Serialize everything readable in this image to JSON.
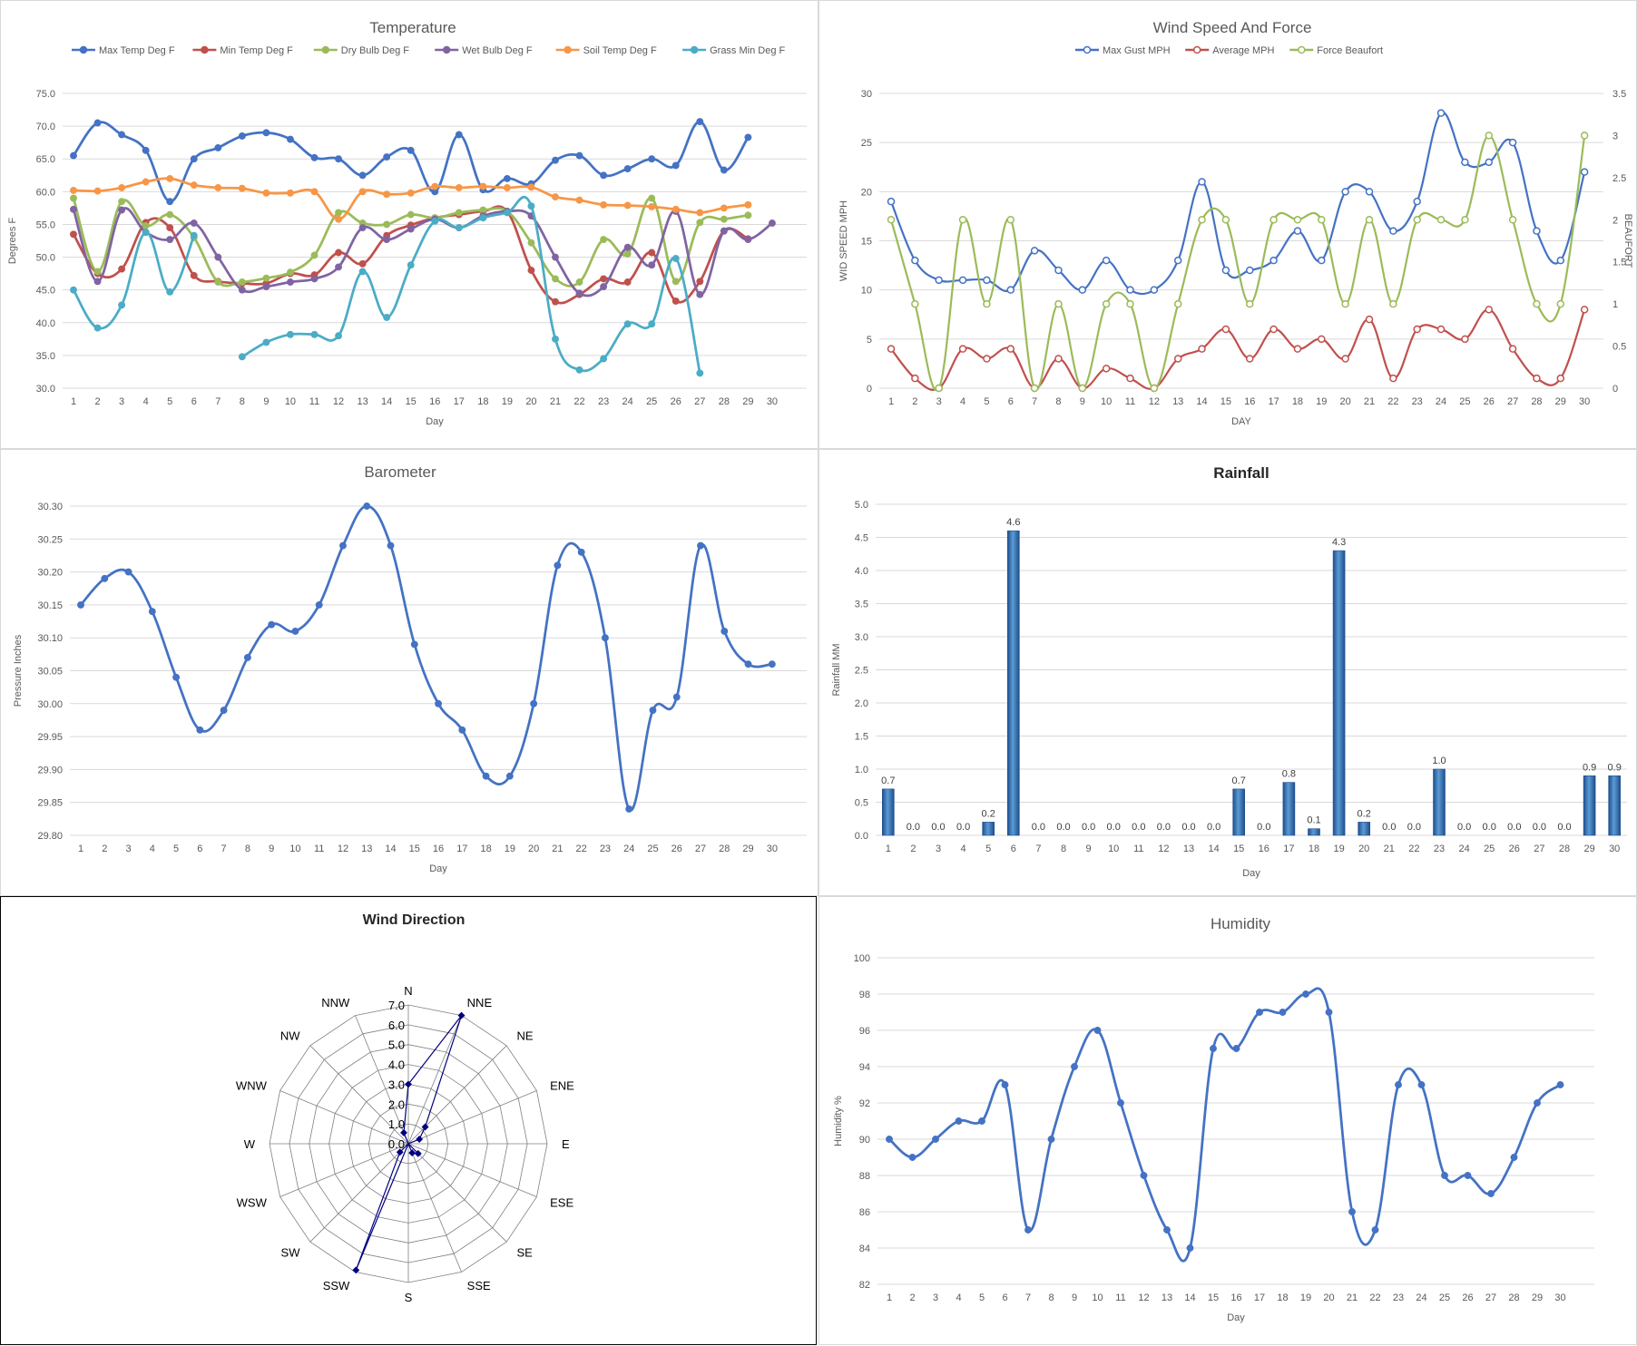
{
  "days": [
    "1",
    "2",
    "3",
    "4",
    "5",
    "6",
    "7",
    "8",
    "9",
    "10",
    "11",
    "12",
    "13",
    "14",
    "15",
    "16",
    "17",
    "18",
    "19",
    "20",
    "21",
    "22",
    "23",
    "24",
    "25",
    "26",
    "27",
    "28",
    "29",
    "30"
  ],
  "chart_data": [
    {
      "id": "temperature",
      "type": "line",
      "title": "Temperature",
      "xlabel": "Day",
      "ylabel": "Degrees F",
      "ylim": [
        30,
        75
      ],
      "yticks": [
        "30.0",
        "35.0",
        "40.0",
        "45.0",
        "50.0",
        "55.0",
        "60.0",
        "65.0",
        "70.0",
        "75.0"
      ],
      "grid": true,
      "legend": "top",
      "series": [
        {
          "name": "Max Temp Deg F",
          "color": "#4472c4",
          "values": [
            65.5,
            70.5,
            68.7,
            66.3,
            58.5,
            65.0,
            66.7,
            68.5,
            69.0,
            68.0,
            65.2,
            65.0,
            62.5,
            65.3,
            66.3,
            60.0,
            68.7,
            60.3,
            62.0,
            61.2,
            64.8,
            65.5,
            62.5,
            63.5,
            65.0,
            64.0,
            70.7,
            63.3,
            68.3,
            null
          ]
        },
        {
          "name": "Min Temp Deg F",
          "color": "#c0504d",
          "values": [
            53.5,
            47.5,
            48.2,
            55.3,
            54.5,
            47.2,
            46.3,
            46.0,
            46.0,
            47.5,
            47.3,
            50.7,
            49.0,
            53.3,
            54.9,
            56.0,
            56.5,
            57.0,
            57.0,
            48.0,
            43.2,
            44.3,
            46.7,
            46.2,
            50.7,
            43.3,
            46.3,
            54.0,
            52.8,
            null
          ]
        },
        {
          "name": "Dry Bulb Deg F",
          "color": "#9bbb59",
          "values": [
            59.0,
            47.8,
            58.5,
            54.8,
            56.5,
            53.0,
            46.2,
            46.2,
            46.8,
            47.7,
            50.3,
            56.8,
            55.2,
            55.0,
            56.5,
            56.0,
            56.8,
            57.2,
            57.0,
            52.2,
            46.7,
            46.2,
            52.7,
            50.5,
            59.0,
            46.3,
            55.3,
            55.8,
            56.4,
            null
          ]
        },
        {
          "name": "Wet Bulb Deg F",
          "color": "#8064a2",
          "values": [
            57.3,
            46.3,
            57.2,
            53.8,
            52.7,
            55.2,
            50.0,
            45.0,
            45.5,
            46.2,
            46.7,
            48.5,
            54.5,
            52.7,
            54.3,
            55.8,
            54.5,
            56.3,
            57.0,
            56.3,
            50.0,
            44.5,
            45.5,
            51.5,
            48.8,
            57.0,
            44.3,
            54.0,
            52.7,
            55.2
          ]
        },
        {
          "name": "Soil Temp Deg F",
          "color": "#f79646",
          "values": [
            60.2,
            60.1,
            60.6,
            61.5,
            62.0,
            61.0,
            60.6,
            60.5,
            59.8,
            59.8,
            60.0,
            55.8,
            60.0,
            59.6,
            59.8,
            60.8,
            60.6,
            60.8,
            60.6,
            60.7,
            59.2,
            58.7,
            58.0,
            57.9,
            57.7,
            57.3,
            56.8,
            57.5,
            58.0,
            null
          ]
        },
        {
          "name": "Grass Min Deg F",
          "color": "#4bacc6",
          "values": [
            45.0,
            39.2,
            42.7,
            53.8,
            44.7,
            53.3,
            null,
            34.8,
            37.0,
            38.2,
            38.2,
            38.0,
            47.8,
            40.8,
            48.8,
            55.5,
            54.5,
            56.0,
            56.8,
            57.8,
            37.5,
            32.8,
            34.5,
            39.8,
            39.8,
            49.8,
            32.3,
            null,
            null,
            null
          ]
        }
      ]
    },
    {
      "id": "wind",
      "type": "line",
      "title": "Wind Speed And Force",
      "xlabel": "DAY",
      "ylabel": "WID SPEED MPH",
      "ylabel2": "BEAUFORT",
      "ylim": [
        0,
        30
      ],
      "ylim2": [
        0,
        3.5
      ],
      "yticks": [
        "0",
        "5",
        "10",
        "15",
        "20",
        "25",
        "30"
      ],
      "yticks2": [
        "0",
        "0.5",
        "1",
        "1.5",
        "2",
        "2.5",
        "3",
        "3.5"
      ],
      "grid": true,
      "legend": "top",
      "series": [
        {
          "name": "Max Gust MPH",
          "axis": 1,
          "color": "#4472c4",
          "values": [
            19,
            13,
            11,
            11,
            11,
            10,
            14,
            12,
            10,
            13,
            10,
            10,
            13,
            21,
            12,
            12,
            13,
            16,
            13,
            20,
            20,
            16,
            19,
            28,
            23,
            23,
            25,
            16,
            13,
            22
          ]
        },
        {
          "name": "Average MPH",
          "axis": 1,
          "color": "#c0504d",
          "values": [
            4,
            1,
            0,
            4,
            3,
            4,
            0,
            3,
            0,
            2,
            1,
            0,
            3,
            4,
            6,
            3,
            6,
            4,
            5,
            3,
            7,
            1,
            6,
            6,
            5,
            8,
            4,
            1,
            1,
            8
          ]
        },
        {
          "name": "Force Beaufort",
          "axis": 2,
          "color": "#9bbb59",
          "values": [
            2,
            1,
            0,
            2,
            1,
            2,
            0,
            1,
            0,
            1,
            1,
            0,
            1,
            2,
            2,
            1,
            2,
            2,
            2,
            1,
            2,
            1,
            2,
            2,
            2,
            3,
            2,
            1,
            1,
            3
          ]
        }
      ]
    },
    {
      "id": "barometer",
      "type": "line",
      "title": "Barometer",
      "xlabel": "Day",
      "ylabel": "Pressure Inches",
      "ylim": [
        29.8,
        30.3
      ],
      "yticks": [
        "29.80",
        "29.85",
        "29.90",
        "29.95",
        "30.00",
        "30.05",
        "30.10",
        "30.15",
        "30.20",
        "30.25",
        "30.30"
      ],
      "grid": true,
      "series": [
        {
          "name": "",
          "color": "#4472c4",
          "values": [
            30.15,
            30.19,
            30.2,
            30.14,
            30.04,
            29.96,
            29.99,
            30.07,
            30.12,
            30.11,
            30.15,
            30.24,
            30.3,
            30.24,
            30.09,
            30.0,
            29.96,
            29.89,
            29.89,
            30.0,
            30.21,
            30.23,
            30.1,
            29.84,
            29.99,
            30.01,
            30.24,
            30.11,
            30.06,
            30.06
          ]
        }
      ]
    },
    {
      "id": "rainfall",
      "type": "bar",
      "title": "Rainfall",
      "xlabel": "Day",
      "ylabel": "Rainfall MM",
      "ylim": [
        0,
        5
      ],
      "yticks": [
        "0.0",
        "0.5",
        "1.0",
        "1.5",
        "2.0",
        "2.5",
        "3.0",
        "3.5",
        "4.0",
        "4.5",
        "5.0"
      ],
      "grid": true,
      "color": "#2e75b6",
      "values": [
        0.7,
        0.0,
        0.0,
        0.0,
        0.2,
        4.6,
        0.0,
        0.0,
        0.0,
        0.0,
        0.0,
        0.0,
        0.0,
        0.0,
        0.7,
        0.0,
        0.8,
        0.1,
        4.3,
        0.2,
        0.0,
        0.0,
        1.0,
        0.0,
        0.0,
        0.0,
        0.0,
        0.0,
        0.9,
        0.9
      ],
      "labels": [
        "0.7",
        "0.0",
        "0.0",
        "0.0",
        "0.2",
        "4.6",
        "0.0",
        "0.0",
        "0.0",
        "0.0",
        "0.0",
        "0.0",
        "0.0",
        "0.0",
        "0.7",
        "0.0",
        "0.8",
        "0.1",
        "4.3",
        "0.2",
        "0.0",
        "0.0",
        "1.0",
        "0.0",
        "0.0",
        "0.0",
        "0.0",
        "0.0",
        "0.9",
        "0.9"
      ]
    },
    {
      "id": "winddir",
      "type": "radar",
      "title": "Wind Direction",
      "rlim": [
        0,
        7
      ],
      "rticks": [
        "0.0",
        "1.0",
        "2.0",
        "3.0",
        "4.0",
        "5.0",
        "6.0",
        "7.0"
      ],
      "color": "#000080",
      "categories": [
        "N",
        "NNE",
        "NE",
        "ENE",
        "E",
        "ESE",
        "SE",
        "SSE",
        "S",
        "SSW",
        "SW",
        "WSW",
        "W",
        "WNW",
        "NW",
        "NNW"
      ],
      "values": [
        3.0,
        7.0,
        1.2,
        0.6,
        0,
        0,
        0.7,
        0.5,
        0,
        6.9,
        0.6,
        0,
        0,
        0,
        0,
        0.6
      ]
    },
    {
      "id": "humidity",
      "type": "line",
      "title": "Humidity",
      "xlabel": "Day",
      "ylabel": "Humidity %",
      "ylim": [
        82,
        100
      ],
      "yticks": [
        "82",
        "84",
        "86",
        "88",
        "90",
        "92",
        "94",
        "96",
        "98",
        "100"
      ],
      "grid": true,
      "series": [
        {
          "name": "",
          "color": "#4472c4",
          "values": [
            90,
            89,
            90,
            91,
            91,
            93,
            85,
            90,
            94,
            96,
            92,
            88,
            85,
            84,
            95,
            95,
            97,
            97,
            98,
            97,
            86,
            85,
            93,
            93,
            88,
            88,
            87,
            89,
            92,
            93
          ]
        }
      ]
    }
  ]
}
